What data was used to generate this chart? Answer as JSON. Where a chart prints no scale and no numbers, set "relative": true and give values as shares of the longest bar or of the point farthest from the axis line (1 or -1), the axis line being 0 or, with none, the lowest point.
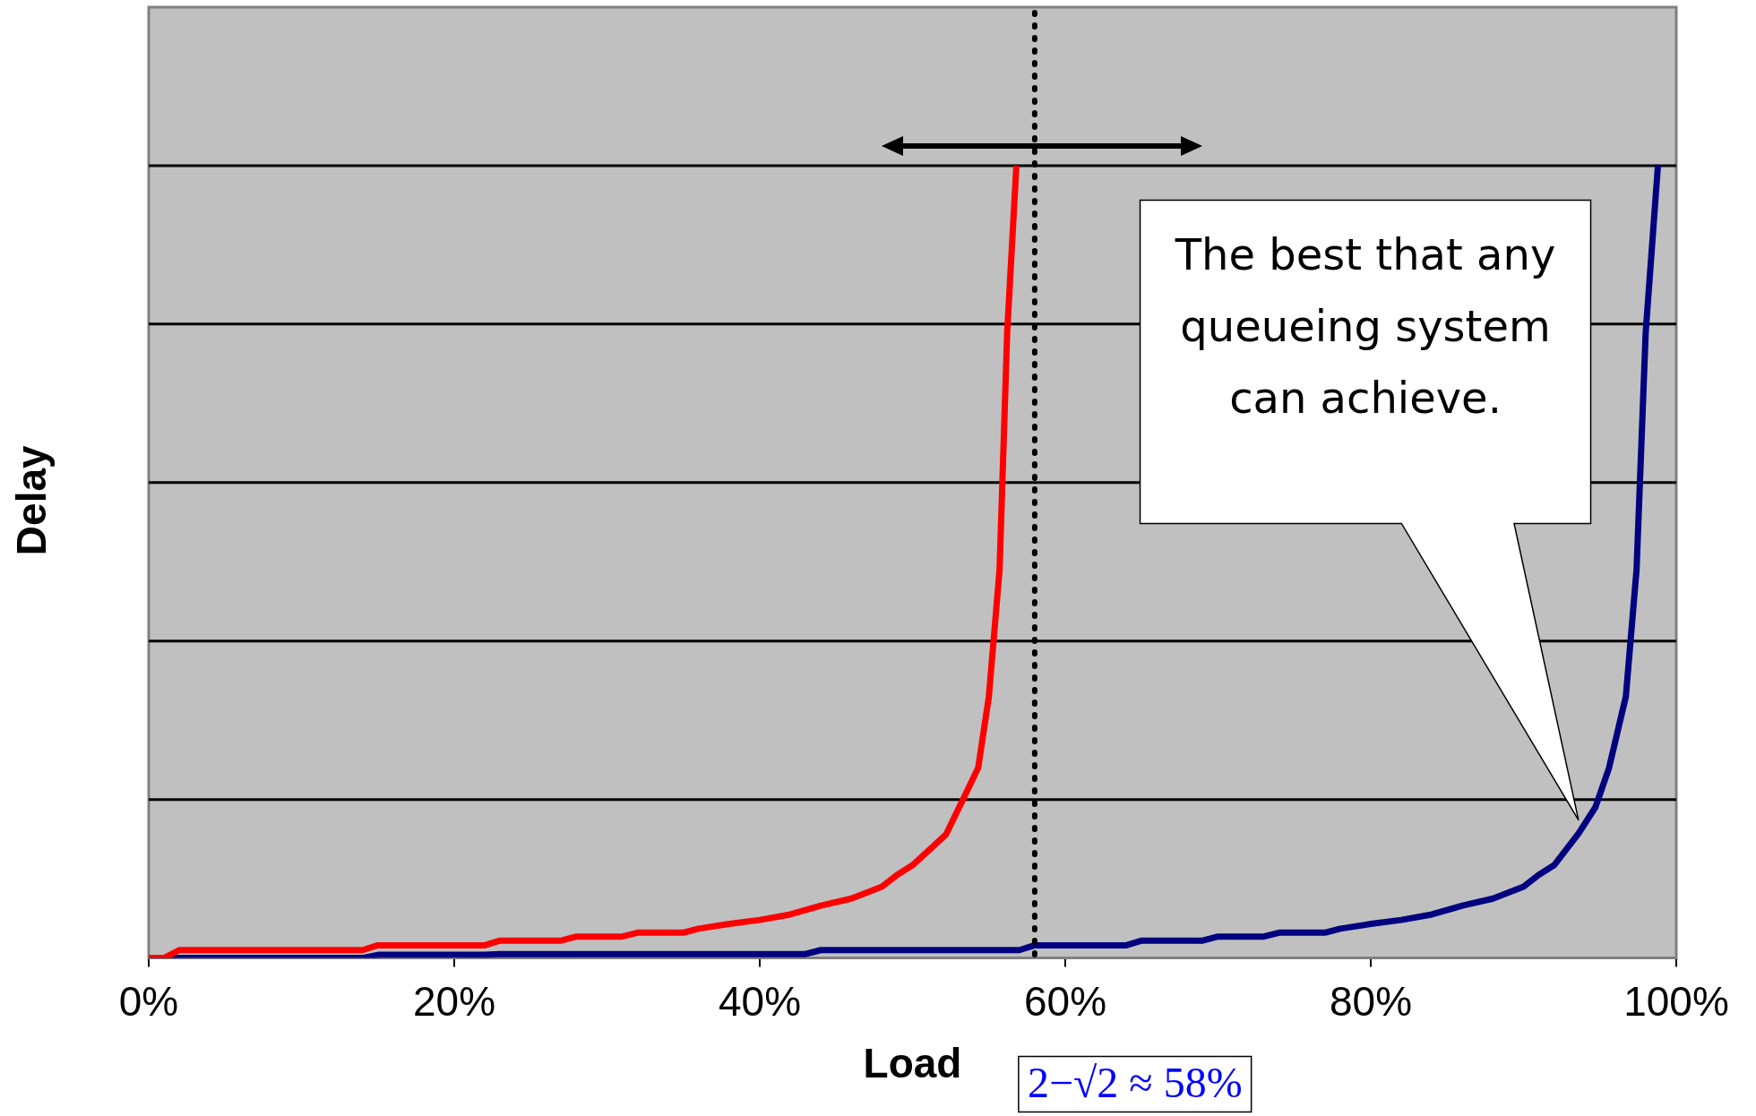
{
  "chart_data": {
    "type": "line",
    "xlabel": "Load",
    "ylabel": "Delay",
    "relative": true,
    "grid": "y",
    "legend": false,
    "marker": "none",
    "line_style": "solid",
    "xlim": [
      0,
      100
    ],
    "xticks": [
      {
        "value": 0,
        "label": "0%"
      },
      {
        "value": 20,
        "label": "20%"
      },
      {
        "value": 40,
        "label": "40%"
      },
      {
        "value": 60,
        "label": "60%"
      },
      {
        "value": 80,
        "label": "80%"
      },
      {
        "value": 100,
        "label": "100%"
      }
    ],
    "series": [
      {
        "color": "#ff0000",
        "x": [
          0,
          1,
          2,
          14,
          15,
          22,
          23,
          27,
          28,
          31,
          32,
          35,
          36,
          38,
          40,
          42,
          44,
          46,
          48,
          49,
          50,
          52.2,
          53.3,
          54.3,
          55,
          55.7,
          56.2,
          56.8
        ],
        "values": [
          0,
          0,
          0.01,
          0.01,
          0.016,
          0.016,
          0.022,
          0.022,
          0.027,
          0.027,
          0.032,
          0.032,
          0.037,
          0.043,
          0.048,
          0.055,
          0.066,
          0.075,
          0.09,
          0.105,
          0.117,
          0.156,
          0.2,
          0.24,
          0.33,
          0.49,
          0.79,
          1
        ]
      },
      {
        "color": "#000080",
        "x": [
          0,
          14,
          15,
          22,
          23,
          43,
          44,
          57,
          58,
          64,
          65,
          69,
          70,
          73,
          74,
          77,
          78,
          80,
          82,
          84,
          86,
          88,
          90,
          91,
          92,
          93.6,
          94.7,
          95.6,
          96.7,
          97.4,
          98,
          98.8
        ],
        "values": [
          0,
          0,
          0.004,
          0.004,
          0.005,
          0.005,
          0.01,
          0.01,
          0.016,
          0.016,
          0.022,
          0.022,
          0.027,
          0.027,
          0.032,
          0.032,
          0.037,
          0.043,
          0.048,
          0.055,
          0.066,
          0.075,
          0.09,
          0.105,
          0.117,
          0.157,
          0.19,
          0.24,
          0.33,
          0.49,
          0.79,
          1
        ]
      }
    ],
    "ref_lines": [
      {
        "axis": "x",
        "value": 58,
        "label": "2−√2 ≈ 58%",
        "color": "#000000",
        "line_style": "dotted"
      }
    ],
    "annotations": [
      "The best that any queueing system can achieve."
    ]
  }
}
